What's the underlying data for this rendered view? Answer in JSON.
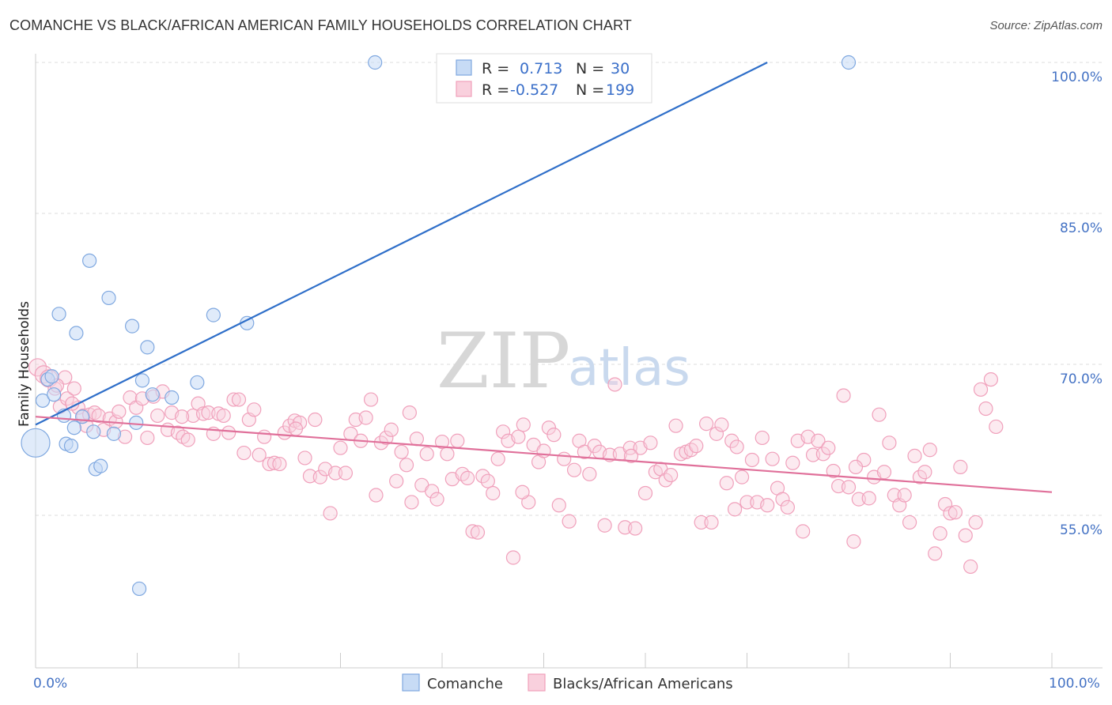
{
  "title": "COMANCHE VS BLACK/AFRICAN AMERICAN FAMILY HOUSEHOLDS CORRELATION CHART",
  "source": "Source: ZipAtlas.com",
  "watermark": {
    "zip": "ZIP",
    "atlas": "atlas"
  },
  "legend_top": {
    "rows": [
      {
        "r_label": "R =",
        "r_value": "0.713",
        "n_label": "N =",
        "n_value": "30",
        "color": "#7fa8e0"
      },
      {
        "r_label": "R =",
        "r_value": "-0.527",
        "n_label": "N =",
        "n_value": "199",
        "color": "#f0a0bb"
      }
    ]
  },
  "legend_bottom": {
    "items": [
      {
        "label": "Comanche",
        "color": "#7fa8e0"
      },
      {
        "label": "Blacks/African Americans",
        "color": "#f0a0bb"
      }
    ]
  },
  "chart_data": {
    "type": "scatter",
    "title": "COMANCHE VS BLACK/AFRICAN AMERICAN FAMILY HOUSEHOLDS CORRELATION CHART",
    "xlabel": "",
    "ylabel": "Family Households",
    "xlim": [
      0,
      100
    ],
    "ylim": [
      40,
      102
    ],
    "x_tick_labels": [
      "0.0%",
      "100.0%"
    ],
    "y_ticks": [
      55,
      70,
      85,
      100
    ],
    "y_tick_labels": [
      "55.0%",
      "70.0%",
      "85.0%",
      "100.0%"
    ],
    "grid": true,
    "legend_placement": "top-center",
    "series": [
      {
        "name": "Comanche",
        "color": "#7fa8e0",
        "line_color": "#2f6fc9",
        "R": 0.713,
        "N": 30,
        "trend": {
          "x": [
            0,
            72
          ],
          "y": [
            64,
            100
          ]
        },
        "points": [
          [
            0.0,
            62.2
          ],
          [
            0.7,
            66.4
          ],
          [
            1.2,
            68.5
          ],
          [
            1.6,
            68.8
          ],
          [
            1.8,
            67.0
          ],
          [
            2.3,
            75.0
          ],
          [
            2.8,
            64.9
          ],
          [
            3.0,
            62.1
          ],
          [
            3.5,
            61.9
          ],
          [
            3.8,
            63.7
          ],
          [
            4.0,
            73.1
          ],
          [
            4.6,
            64.8
          ],
          [
            5.3,
            80.3
          ],
          [
            5.7,
            63.3
          ],
          [
            5.9,
            59.6
          ],
          [
            6.4,
            59.9
          ],
          [
            7.2,
            76.6
          ],
          [
            7.7,
            63.1
          ],
          [
            9.5,
            73.8
          ],
          [
            9.9,
            64.2
          ],
          [
            10.2,
            47.7
          ],
          [
            10.5,
            68.4
          ],
          [
            11.0,
            71.7
          ],
          [
            11.5,
            67.0
          ],
          [
            13.4,
            66.7
          ],
          [
            15.9,
            68.2
          ],
          [
            17.5,
            74.9
          ],
          [
            20.8,
            74.1
          ],
          [
            33.4,
            100.0
          ],
          [
            80.0,
            100.0
          ]
        ]
      },
      {
        "name": "Blacks/African Americans",
        "color": "#f0a0bb",
        "line_color": "#e0709a",
        "R": -0.527,
        "N": 199,
        "trend": {
          "x": [
            0,
            100
          ],
          "y": [
            64.8,
            57.3
          ]
        },
        "points": [
          [
            0.2,
            69.7
          ],
          [
            0.8,
            69.0
          ],
          [
            1.3,
            68.6
          ],
          [
            1.9,
            67.6
          ],
          [
            2.4,
            65.8
          ],
          [
            2.9,
            68.7
          ],
          [
            3.1,
            66.6
          ],
          [
            3.8,
            67.6
          ],
          [
            4.2,
            65.7
          ],
          [
            4.7,
            64.9
          ],
          [
            5.3,
            65.0
          ],
          [
            5.8,
            65.2
          ],
          [
            6.2,
            64.9
          ],
          [
            6.7,
            63.5
          ],
          [
            7.3,
            64.6
          ],
          [
            7.9,
            64.3
          ],
          [
            8.2,
            65.3
          ],
          [
            8.8,
            62.8
          ],
          [
            9.3,
            66.7
          ],
          [
            9.9,
            65.7
          ],
          [
            10.5,
            66.6
          ],
          [
            11.0,
            62.7
          ],
          [
            11.6,
            66.8
          ],
          [
            12.0,
            64.9
          ],
          [
            12.5,
            67.3
          ],
          [
            13.0,
            63.5
          ],
          [
            13.4,
            65.2
          ],
          [
            14.0,
            63.2
          ],
          [
            14.5,
            62.8
          ],
          [
            15.0,
            62.5
          ],
          [
            15.5,
            64.9
          ],
          [
            16.0,
            66.1
          ],
          [
            16.5,
            65.1
          ],
          [
            17.0,
            65.2
          ],
          [
            17.5,
            63.1
          ],
          [
            18.0,
            65.1
          ],
          [
            18.5,
            64.9
          ],
          [
            19.0,
            63.2
          ],
          [
            19.5,
            66.5
          ],
          [
            20.0,
            66.5
          ],
          [
            20.5,
            61.2
          ],
          [
            21.0,
            64.5
          ],
          [
            21.5,
            65.5
          ],
          [
            22.0,
            61.0
          ],
          [
            22.5,
            62.8
          ],
          [
            23.0,
            60.1
          ],
          [
            23.5,
            60.2
          ],
          [
            24.0,
            60.1
          ],
          [
            24.5,
            63.2
          ],
          [
            25.0,
            63.9
          ],
          [
            25.5,
            64.4
          ],
          [
            26.0,
            64.2
          ],
          [
            26.5,
            60.7
          ],
          [
            27.0,
            58.9
          ],
          [
            27.5,
            64.5
          ],
          [
            28.0,
            58.8
          ],
          [
            28.5,
            59.6
          ],
          [
            29.0,
            55.2
          ],
          [
            29.5,
            59.2
          ],
          [
            30.0,
            61.7
          ],
          [
            30.5,
            59.2
          ],
          [
            31.0,
            63.1
          ],
          [
            31.5,
            64.5
          ],
          [
            32.0,
            62.4
          ],
          [
            32.5,
            64.7
          ],
          [
            33.0,
            66.5
          ],
          [
            33.5,
            57.0
          ],
          [
            34.0,
            62.2
          ],
          [
            34.5,
            62.7
          ],
          [
            35.0,
            63.5
          ],
          [
            35.5,
            58.4
          ],
          [
            36.0,
            61.3
          ],
          [
            36.5,
            60.0
          ],
          [
            37.0,
            56.3
          ],
          [
            37.5,
            62.6
          ],
          [
            38.0,
            58.0
          ],
          [
            38.5,
            61.1
          ],
          [
            39.0,
            57.4
          ],
          [
            39.5,
            56.6
          ],
          [
            40.0,
            62.3
          ],
          [
            40.5,
            61.1
          ],
          [
            41.0,
            58.6
          ],
          [
            41.5,
            62.4
          ],
          [
            42.0,
            59.1
          ],
          [
            42.5,
            58.7
          ],
          [
            43.0,
            53.4
          ],
          [
            43.5,
            53.3
          ],
          [
            44.0,
            58.9
          ],
          [
            44.5,
            58.4
          ],
          [
            45.0,
            57.2
          ],
          [
            45.5,
            60.6
          ],
          [
            46.0,
            63.3
          ],
          [
            46.5,
            62.4
          ],
          [
            47.0,
            50.8
          ],
          [
            47.5,
            62.8
          ],
          [
            48.0,
            64.0
          ],
          [
            48.5,
            56.3
          ],
          [
            49.0,
            62.0
          ],
          [
            49.5,
            60.3
          ],
          [
            50.0,
            61.4
          ],
          [
            50.5,
            63.7
          ],
          [
            51.0,
            63.0
          ],
          [
            51.5,
            56.0
          ],
          [
            52.0,
            60.6
          ],
          [
            52.5,
            54.4
          ],
          [
            53.0,
            59.5
          ],
          [
            53.5,
            62.4
          ],
          [
            54.0,
            61.3
          ],
          [
            54.5,
            59.1
          ],
          [
            55.0,
            61.9
          ],
          [
            55.5,
            61.3
          ],
          [
            56.0,
            54.0
          ],
          [
            56.5,
            61.0
          ],
          [
            57.0,
            68.0
          ],
          [
            57.5,
            61.1
          ],
          [
            58.0,
            53.8
          ],
          [
            58.5,
            61.7
          ],
          [
            59.0,
            53.7
          ],
          [
            59.5,
            61.7
          ],
          [
            60.0,
            57.2
          ],
          [
            60.5,
            62.2
          ],
          [
            61.0,
            59.3
          ],
          [
            61.5,
            59.6
          ],
          [
            62.0,
            58.5
          ],
          [
            62.5,
            59.0
          ],
          [
            63.0,
            63.9
          ],
          [
            63.5,
            61.1
          ],
          [
            64.0,
            61.3
          ],
          [
            64.5,
            61.5
          ],
          [
            65.0,
            61.9
          ],
          [
            65.5,
            54.3
          ],
          [
            66.0,
            64.1
          ],
          [
            66.5,
            54.3
          ],
          [
            67.0,
            63.1
          ],
          [
            67.5,
            64.0
          ],
          [
            68.0,
            58.2
          ],
          [
            68.5,
            62.4
          ],
          [
            69.0,
            61.8
          ],
          [
            69.5,
            58.8
          ],
          [
            70.0,
            56.3
          ],
          [
            70.5,
            60.5
          ],
          [
            71.0,
            56.3
          ],
          [
            71.5,
            62.7
          ],
          [
            72.0,
            56.0
          ],
          [
            72.5,
            60.6
          ],
          [
            73.0,
            57.7
          ],
          [
            73.5,
            56.6
          ],
          [
            74.0,
            55.8
          ],
          [
            74.5,
            60.2
          ],
          [
            75.0,
            62.4
          ],
          [
            75.5,
            53.4
          ],
          [
            76.0,
            62.8
          ],
          [
            76.5,
            61.0
          ],
          [
            77.0,
            62.4
          ],
          [
            77.5,
            61.1
          ],
          [
            78.0,
            61.7
          ],
          [
            78.5,
            59.4
          ],
          [
            79.0,
            57.9
          ],
          [
            79.5,
            66.9
          ],
          [
            80.0,
            57.8
          ],
          [
            80.5,
            52.4
          ],
          [
            81.0,
            56.6
          ],
          [
            81.5,
            60.5
          ],
          [
            82.0,
            56.7
          ],
          [
            82.5,
            58.8
          ],
          [
            83.0,
            65.0
          ],
          [
            83.5,
            59.3
          ],
          [
            84.0,
            62.2
          ],
          [
            84.5,
            57.0
          ],
          [
            85.0,
            56.0
          ],
          [
            85.5,
            57.0
          ],
          [
            86.0,
            54.3
          ],
          [
            86.5,
            60.9
          ],
          [
            87.0,
            58.8
          ],
          [
            87.5,
            59.3
          ],
          [
            88.0,
            61.5
          ],
          [
            88.5,
            51.2
          ],
          [
            89.0,
            53.2
          ],
          [
            89.5,
            56.1
          ],
          [
            90.0,
            55.2
          ],
          [
            90.5,
            55.3
          ],
          [
            91.0,
            59.8
          ],
          [
            91.5,
            53.0
          ],
          [
            92.0,
            49.9
          ],
          [
            92.5,
            54.3
          ],
          [
            93.0,
            67.5
          ],
          [
            93.5,
            65.6
          ],
          [
            94.0,
            68.5
          ],
          [
            94.5,
            63.8
          ],
          [
            80.7,
            59.8
          ],
          [
            68.8,
            55.6
          ],
          [
            58.6,
            60.9
          ],
          [
            47.9,
            57.3
          ],
          [
            36.8,
            65.2
          ],
          [
            25.6,
            63.6
          ],
          [
            14.4,
            64.8
          ],
          [
            3.6,
            66.1
          ],
          [
            2.1,
            67.9
          ],
          [
            5.0,
            63.9
          ]
        ]
      }
    ]
  }
}
